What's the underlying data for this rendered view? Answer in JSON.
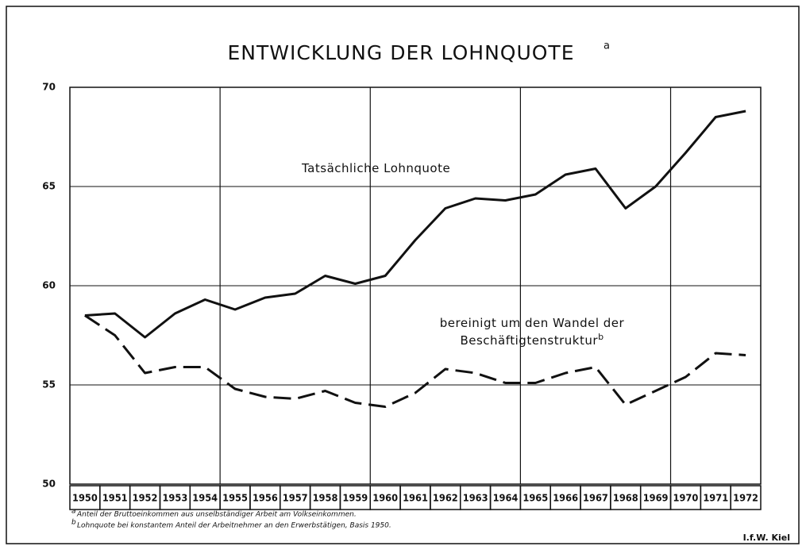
{
  "chart_data": {
    "type": "line",
    "title": "ENTWICKLUNG DER LOHNQUOTE",
    "title_mark": "a",
    "categories": [
      "1950",
      "1951",
      "1952",
      "1953",
      "1954",
      "1955",
      "1956",
      "1957",
      "1958",
      "1959",
      "1960",
      "1961",
      "1962",
      "1963",
      "1964",
      "1965",
      "1966",
      "1967",
      "1968",
      "1969",
      "1970",
      "1971",
      "1972"
    ],
    "series": [
      {
        "name": "Tatsächliche Lohnquote",
        "color": "#111111",
        "dashed": false,
        "values": [
          58.5,
          58.6,
          57.4,
          58.6,
          59.3,
          58.8,
          59.4,
          59.6,
          60.5,
          60.1,
          60.5,
          62.3,
          63.9,
          64.4,
          64.3,
          64.6,
          65.6,
          65.9,
          63.9,
          65.0,
          66.7,
          68.5,
          68.8
        ]
      },
      {
        "name": "bereinigt um den Wandel der Beschäftigtenstruktur",
        "name_mark": "b",
        "color": "#111111",
        "dashed": true,
        "values": [
          58.5,
          57.5,
          55.6,
          55.9,
          55.9,
          54.8,
          54.4,
          54.3,
          54.7,
          54.1,
          53.9,
          54.6,
          55.8,
          55.6,
          55.1,
          55.1,
          55.6,
          55.9,
          54.0,
          54.7,
          55.4,
          56.6,
          56.5
        ]
      }
    ],
    "ylim": [
      50,
      70
    ],
    "yticks": [
      50,
      55,
      60,
      65,
      70
    ],
    "grid": true,
    "footnotes": [
      {
        "mark": "a",
        "text": "Anteil der Bruttoeinkommen aus unselbständiger Arbeit am Volkseinkommen."
      },
      {
        "mark": "b",
        "text": "Lohnquote bei konstantem Anteil der Arbeitnehmer an den Erwerbstätigen, Basis 1950."
      }
    ],
    "source": "I.f.W. Kiel"
  }
}
